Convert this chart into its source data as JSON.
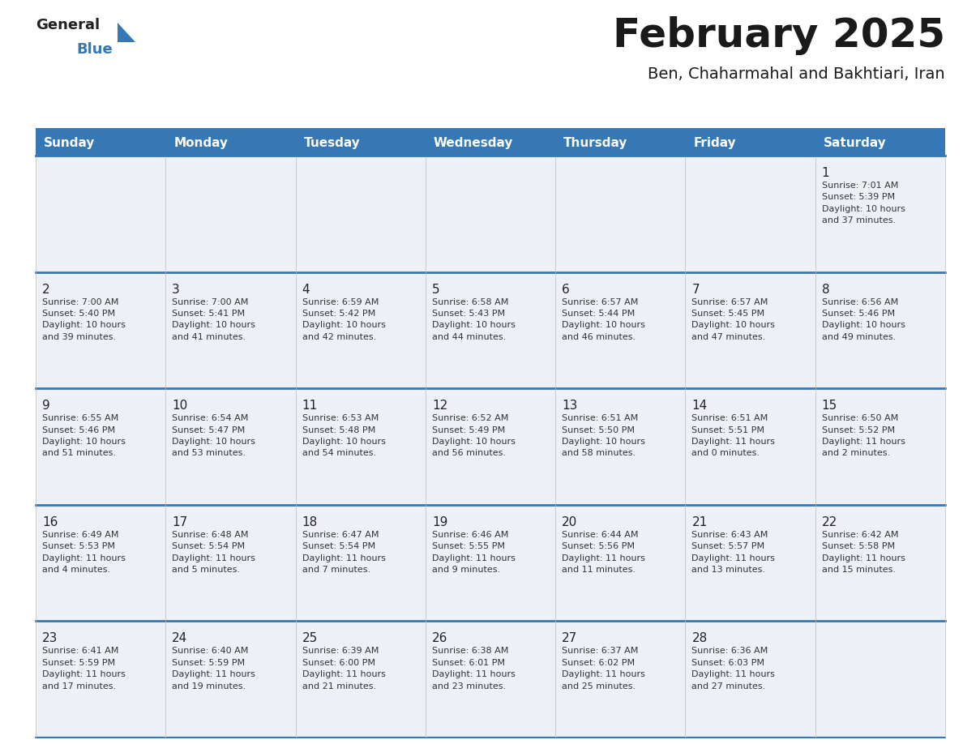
{
  "title": "February 2025",
  "subtitle": "Ben, Chaharmahal and Bakhtiari, Iran",
  "header_bg_color": "#3578b5",
  "header_text_color": "#ffffff",
  "cell_bg_odd": "#edf1f7",
  "cell_bg_even": "#ffffff",
  "day_number_color": "#222222",
  "text_color": "#333333",
  "line_color": "#3578b5",
  "grid_line_color": "#3578b5",
  "days_of_week": [
    "Sunday",
    "Monday",
    "Tuesday",
    "Wednesday",
    "Thursday",
    "Friday",
    "Saturday"
  ],
  "weeks": [
    [
      {
        "day": null,
        "info": null
      },
      {
        "day": null,
        "info": null
      },
      {
        "day": null,
        "info": null
      },
      {
        "day": null,
        "info": null
      },
      {
        "day": null,
        "info": null
      },
      {
        "day": null,
        "info": null
      },
      {
        "day": "1",
        "info": "Sunrise: 7:01 AM\nSunset: 5:39 PM\nDaylight: 10 hours\nand 37 minutes."
      }
    ],
    [
      {
        "day": "2",
        "info": "Sunrise: 7:00 AM\nSunset: 5:40 PM\nDaylight: 10 hours\nand 39 minutes."
      },
      {
        "day": "3",
        "info": "Sunrise: 7:00 AM\nSunset: 5:41 PM\nDaylight: 10 hours\nand 41 minutes."
      },
      {
        "day": "4",
        "info": "Sunrise: 6:59 AM\nSunset: 5:42 PM\nDaylight: 10 hours\nand 42 minutes."
      },
      {
        "day": "5",
        "info": "Sunrise: 6:58 AM\nSunset: 5:43 PM\nDaylight: 10 hours\nand 44 minutes."
      },
      {
        "day": "6",
        "info": "Sunrise: 6:57 AM\nSunset: 5:44 PM\nDaylight: 10 hours\nand 46 minutes."
      },
      {
        "day": "7",
        "info": "Sunrise: 6:57 AM\nSunset: 5:45 PM\nDaylight: 10 hours\nand 47 minutes."
      },
      {
        "day": "8",
        "info": "Sunrise: 6:56 AM\nSunset: 5:46 PM\nDaylight: 10 hours\nand 49 minutes."
      }
    ],
    [
      {
        "day": "9",
        "info": "Sunrise: 6:55 AM\nSunset: 5:46 PM\nDaylight: 10 hours\nand 51 minutes."
      },
      {
        "day": "10",
        "info": "Sunrise: 6:54 AM\nSunset: 5:47 PM\nDaylight: 10 hours\nand 53 minutes."
      },
      {
        "day": "11",
        "info": "Sunrise: 6:53 AM\nSunset: 5:48 PM\nDaylight: 10 hours\nand 54 minutes."
      },
      {
        "day": "12",
        "info": "Sunrise: 6:52 AM\nSunset: 5:49 PM\nDaylight: 10 hours\nand 56 minutes."
      },
      {
        "day": "13",
        "info": "Sunrise: 6:51 AM\nSunset: 5:50 PM\nDaylight: 10 hours\nand 58 minutes."
      },
      {
        "day": "14",
        "info": "Sunrise: 6:51 AM\nSunset: 5:51 PM\nDaylight: 11 hours\nand 0 minutes."
      },
      {
        "day": "15",
        "info": "Sunrise: 6:50 AM\nSunset: 5:52 PM\nDaylight: 11 hours\nand 2 minutes."
      }
    ],
    [
      {
        "day": "16",
        "info": "Sunrise: 6:49 AM\nSunset: 5:53 PM\nDaylight: 11 hours\nand 4 minutes."
      },
      {
        "day": "17",
        "info": "Sunrise: 6:48 AM\nSunset: 5:54 PM\nDaylight: 11 hours\nand 5 minutes."
      },
      {
        "day": "18",
        "info": "Sunrise: 6:47 AM\nSunset: 5:54 PM\nDaylight: 11 hours\nand 7 minutes."
      },
      {
        "day": "19",
        "info": "Sunrise: 6:46 AM\nSunset: 5:55 PM\nDaylight: 11 hours\nand 9 minutes."
      },
      {
        "day": "20",
        "info": "Sunrise: 6:44 AM\nSunset: 5:56 PM\nDaylight: 11 hours\nand 11 minutes."
      },
      {
        "day": "21",
        "info": "Sunrise: 6:43 AM\nSunset: 5:57 PM\nDaylight: 11 hours\nand 13 minutes."
      },
      {
        "day": "22",
        "info": "Sunrise: 6:42 AM\nSunset: 5:58 PM\nDaylight: 11 hours\nand 15 minutes."
      }
    ],
    [
      {
        "day": "23",
        "info": "Sunrise: 6:41 AM\nSunset: 5:59 PM\nDaylight: 11 hours\nand 17 minutes."
      },
      {
        "day": "24",
        "info": "Sunrise: 6:40 AM\nSunset: 5:59 PM\nDaylight: 11 hours\nand 19 minutes."
      },
      {
        "day": "25",
        "info": "Sunrise: 6:39 AM\nSunset: 6:00 PM\nDaylight: 11 hours\nand 21 minutes."
      },
      {
        "day": "26",
        "info": "Sunrise: 6:38 AM\nSunset: 6:01 PM\nDaylight: 11 hours\nand 23 minutes."
      },
      {
        "day": "27",
        "info": "Sunrise: 6:37 AM\nSunset: 6:02 PM\nDaylight: 11 hours\nand 25 minutes."
      },
      {
        "day": "28",
        "info": "Sunrise: 6:36 AM\nSunset: 6:03 PM\nDaylight: 11 hours\nand 27 minutes."
      },
      {
        "day": null,
        "info": null
      }
    ]
  ],
  "logo_general_color": "#222222",
  "logo_blue_color": "#3578b5",
  "logo_triangle_color": "#3578b5",
  "title_fontsize": 36,
  "subtitle_fontsize": 14,
  "header_fontsize": 11,
  "day_num_fontsize": 11,
  "info_fontsize": 8
}
